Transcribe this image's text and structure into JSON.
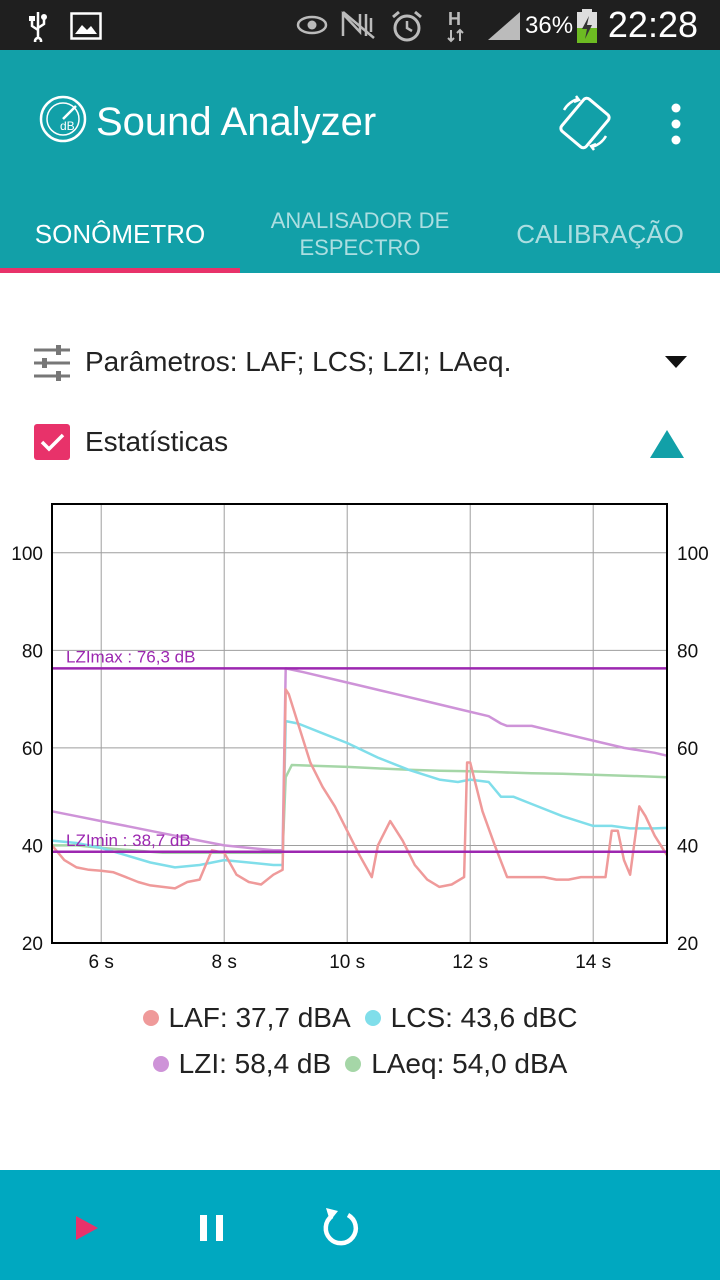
{
  "status_bar": {
    "battery_percent": "36%",
    "time": "22:28"
  },
  "app": {
    "title": "Sound Analyzer"
  },
  "tabs": [
    {
      "label": "SONÔMETRO",
      "active": true
    },
    {
      "label_line1": "ANALISADOR DE",
      "label_line2": "ESPECTRO",
      "active": false
    },
    {
      "label": "CALIBRAÇÃO",
      "active": false
    }
  ],
  "params": {
    "label": "Parâmetros: LAF; LCS; LZI; LAeq."
  },
  "stats": {
    "label": "Estatísticas",
    "checked": true
  },
  "colors": {
    "appbar": "#12a0a8",
    "accent": "#e8326a",
    "laf": "#ef9a9a",
    "lcs": "#80deea",
    "lzi": "#ce93d8",
    "laeq": "#a5d6a7",
    "stat_line": "#9c27b0"
  },
  "chart_data": {
    "type": "line",
    "xlim": [
      5.2,
      15.2
    ],
    "ylim": [
      20,
      110
    ],
    "x_ticks": [
      6,
      8,
      10,
      12,
      14
    ],
    "x_tick_labels": [
      "6 s",
      "8 s",
      "10 s",
      "12 s",
      "14 s"
    ],
    "y_ticks": [
      20,
      40,
      60,
      80,
      100
    ],
    "y_tick_labels": [
      "20",
      "40",
      "60",
      "80",
      "100"
    ],
    "grid": true,
    "reference_lines": [
      {
        "label": "LZImax : 76,3 dB",
        "y": 76.3
      },
      {
        "label": "LZImin : 38,7 dB",
        "y": 38.7
      }
    ],
    "series": [
      {
        "name": "LAF",
        "x": [
          5.2,
          5.4,
          5.6,
          5.8,
          6.0,
          6.2,
          6.4,
          6.6,
          6.8,
          7.0,
          7.2,
          7.4,
          7.6,
          7.8,
          8.0,
          8.2,
          8.4,
          8.6,
          8.8,
          8.95,
          9.0,
          9.05,
          9.2,
          9.4,
          9.6,
          9.8,
          10.0,
          10.2,
          10.4,
          10.5,
          10.7,
          10.9,
          11.1,
          11.3,
          11.5,
          11.7,
          11.9,
          11.95,
          12.0,
          12.2,
          12.4,
          12.6,
          12.8,
          13.0,
          13.2,
          13.4,
          13.6,
          13.8,
          14.0,
          14.2,
          14.3,
          14.4,
          14.5,
          14.6,
          14.75,
          14.85,
          15.0,
          15.2
        ],
        "y": [
          40,
          37,
          35.5,
          35,
          34.8,
          34.5,
          33.5,
          32.5,
          31.8,
          31.5,
          31.2,
          32.5,
          33,
          39,
          38.5,
          34,
          32.5,
          32,
          34,
          35,
          72,
          71,
          65,
          57,
          52,
          48,
          43,
          38,
          33.5,
          40,
          45,
          41,
          36,
          33,
          31.5,
          32,
          33.5,
          57,
          57,
          47,
          40,
          33.5,
          33.5,
          33.5,
          33.5,
          33,
          33,
          33.5,
          33.5,
          33.5,
          43,
          43,
          37,
          34,
          48,
          46,
          42,
          38
        ]
      },
      {
        "name": "LCS",
        "x": [
          5.2,
          5.6,
          6.0,
          6.4,
          6.8,
          7.2,
          7.6,
          8.0,
          8.4,
          8.8,
          8.95,
          9.0,
          9.2,
          9.6,
          10.0,
          10.5,
          11.0,
          11.5,
          11.8,
          12.0,
          12.3,
          12.5,
          12.7,
          13.0,
          13.5,
          14.0,
          14.3,
          14.6,
          15.0,
          15.2
        ],
        "y": [
          41,
          40.5,
          39.5,
          38,
          36.5,
          35.5,
          36,
          37,
          36.5,
          36,
          36,
          65.5,
          65,
          63,
          61,
          58,
          55.5,
          53.5,
          53,
          53.5,
          53,
          50,
          50,
          48.5,
          46,
          44,
          44,
          43.5,
          43.5,
          43.6
        ]
      },
      {
        "name": "LZI",
        "x": [
          5.2,
          5.6,
          6.0,
          6.4,
          6.8,
          7.2,
          7.6,
          8.0,
          8.4,
          8.8,
          8.95,
          9.0,
          9.3,
          9.8,
          10.3,
          10.8,
          11.3,
          11.8,
          12.3,
          12.5,
          12.6,
          12.8,
          13.0,
          13.5,
          14.0,
          14.5,
          15.0,
          15.2
        ],
        "y": [
          47,
          46,
          45,
          44,
          43,
          42,
          41,
          40,
          39.5,
          39,
          39,
          76.3,
          75.5,
          74,
          72.5,
          71,
          69.5,
          68,
          66.5,
          65,
          64.5,
          64.5,
          64.5,
          63,
          61.5,
          60,
          59,
          58.4
        ]
      },
      {
        "name": "LAeq",
        "x": [
          5.2,
          5.6,
          6.0,
          6.5,
          7.0,
          7.5,
          8.0,
          8.5,
          8.95,
          9.0,
          9.1,
          9.5,
          10.0,
          10.5,
          11.0,
          11.5,
          12.0,
          12.5,
          13.0,
          13.5,
          14.0,
          14.5,
          15.0,
          15.2
        ],
        "y": [
          40,
          40,
          39.5,
          39,
          38.5,
          38.5,
          38.5,
          38.5,
          38.5,
          54,
          56.5,
          56.3,
          56.1,
          55.8,
          55.5,
          55.3,
          55.2,
          55,
          54.8,
          54.7,
          54.5,
          54.3,
          54.1,
          54.0
        ]
      }
    ]
  },
  "legend": {
    "row1": [
      {
        "label": "LAF: 37,7 dBA",
        "series": "laf"
      },
      {
        "label": "LCS: 43,6 dBC",
        "series": "lcs"
      }
    ],
    "row2": [
      {
        "label": "LZI: 58,4 dB",
        "series": "lzi"
      },
      {
        "label": "LAeq: 54,0 dBA",
        "series": "laeq"
      }
    ]
  },
  "controls": {
    "play_icon": "play-icon",
    "pause_icon": "pause-icon",
    "reset_icon": "reset-icon"
  }
}
